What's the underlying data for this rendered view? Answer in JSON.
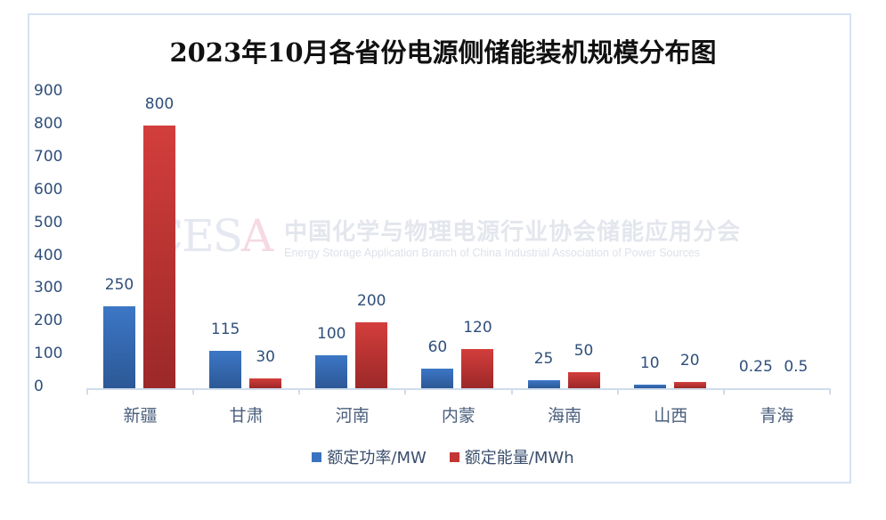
{
  "chart_data": {
    "type": "bar",
    "title": "2023年10月各省份电源侧储能装机规模分布图",
    "categories": [
      "新疆",
      "甘肃",
      "河南",
      "内蒙",
      "海南",
      "山西",
      "青海"
    ],
    "series": [
      {
        "name": "额定功率/MW",
        "color": "#3a72c0",
        "values": [
          250,
          115,
          100,
          60,
          25,
          10,
          0.25
        ],
        "labels": [
          "250",
          "115",
          "100",
          "60",
          "25",
          "10",
          "0.25"
        ]
      },
      {
        "name": "额定能量/MWh",
        "color": "#c43535",
        "values": [
          800,
          30,
          200,
          120,
          50,
          20,
          0.5
        ],
        "labels": [
          "800",
          "30",
          "200",
          "120",
          "50",
          "20",
          "0.5"
        ]
      }
    ],
    "xlabel": "",
    "ylabel": "",
    "ylim": [
      0,
      900
    ],
    "yticks": [
      "0",
      "100",
      "200",
      "300",
      "400",
      "500",
      "600",
      "700",
      "800",
      "900"
    ],
    "grid": false,
    "legend_position": "bottom"
  },
  "watermark": {
    "logo": "CESA",
    "logo_main": "CES",
    "logo_accent": "A",
    "cn": "中国化学与物理电源行业协会储能应用分会",
    "en": "Energy Storage Application Branch of China Industrial Association of Power Sources"
  }
}
